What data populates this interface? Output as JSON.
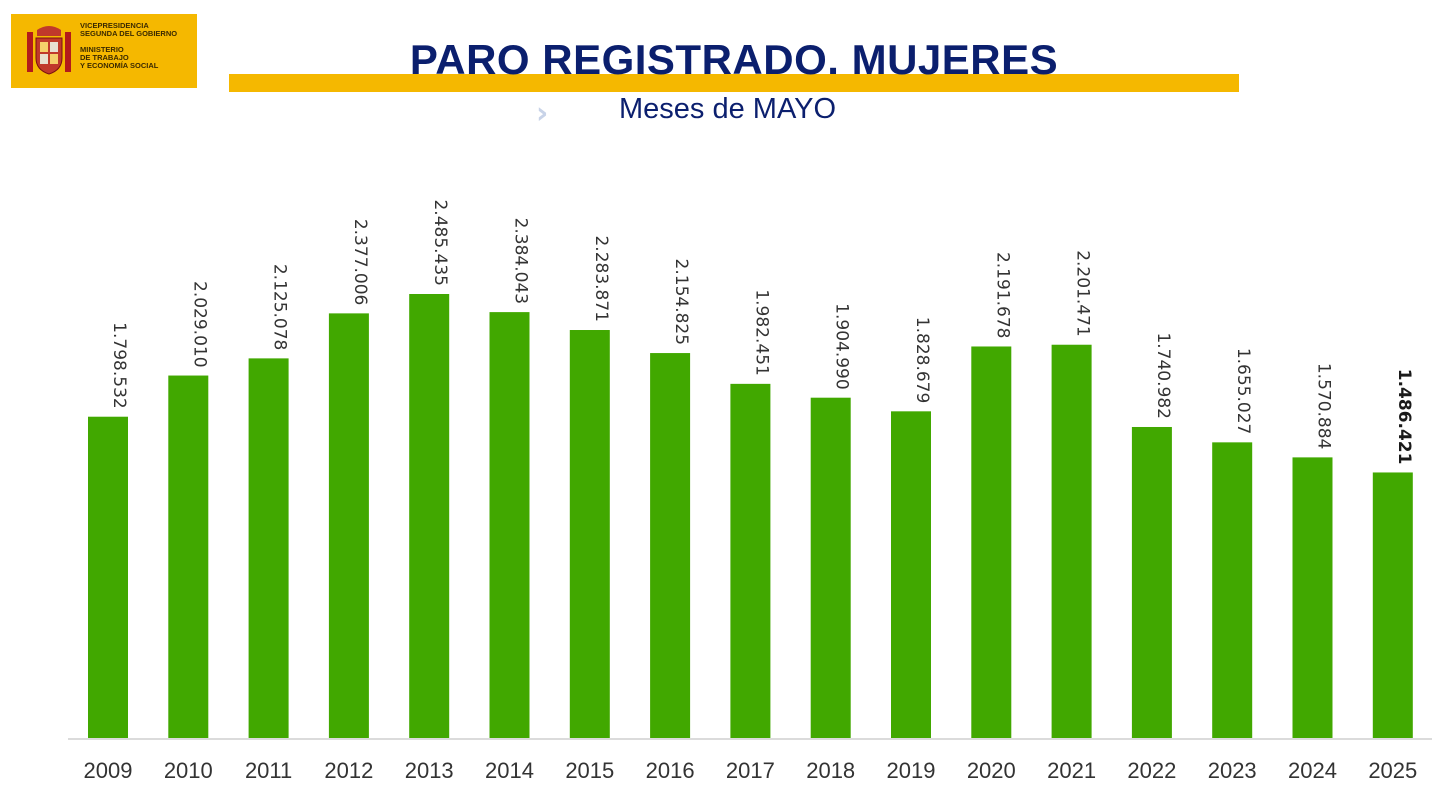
{
  "header": {
    "logo_lines": [
      "VICEPRESIDENCIA",
      "SEGUNDA DEL GOBIERNO",
      "",
      "MINISTERIO",
      "DE TRABAJO",
      "Y ECONOMÍA SOCIAL"
    ],
    "brand_color": "#f5b800"
  },
  "chart_data": {
    "type": "bar",
    "title": "PARO REGISTRADO. MUJERES",
    "subtitle": "Meses de MAYO",
    "categories": [
      "2009",
      "2010",
      "2011",
      "2012",
      "2013",
      "2014",
      "2015",
      "2016",
      "2017",
      "2018",
      "2019",
      "2020",
      "2021",
      "2022",
      "2023",
      "2024",
      "2025"
    ],
    "values": [
      1798532,
      2029010,
      2125078,
      2377006,
      2485435,
      2384043,
      2283871,
      2154825,
      1982451,
      1904990,
      1828679,
      2191678,
      2201471,
      1740982,
      1655027,
      1570884,
      1486421
    ],
    "labels": [
      "1.798.532",
      "2.029.010",
      "2.125.078",
      "2.377.006",
      "2.485.435",
      "2.384.043",
      "2.283.871",
      "2.154.825",
      "1.982.451",
      "1.904.990",
      "1.828.679",
      "2.191.678",
      "2.201.471",
      "1.740.982",
      "1.655.027",
      "1.570.884",
      "1.486.421"
    ],
    "highlight_last": true,
    "bar_color": "#41a800",
    "ylim": [
      0,
      2485435
    ],
    "xlabel": "",
    "ylabel": ""
  }
}
